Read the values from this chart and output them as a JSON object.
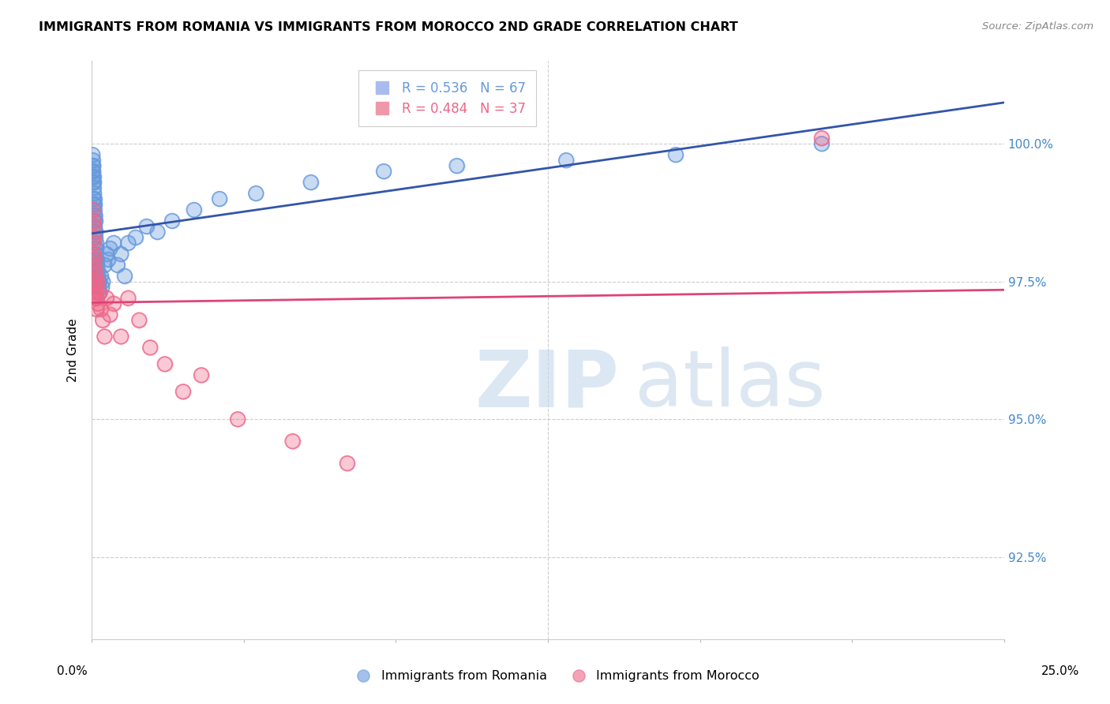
{
  "title": "IMMIGRANTS FROM ROMANIA VS IMMIGRANTS FROM MOROCCO 2ND GRADE CORRELATION CHART",
  "source": "Source: ZipAtlas.com",
  "ylabel": "2nd Grade",
  "ytick_labels": [
    "92.5%",
    "95.0%",
    "97.5%",
    "100.0%"
  ],
  "ytick_values": [
    92.5,
    95.0,
    97.5,
    100.0
  ],
  "xlim": [
    0.0,
    25.0
  ],
  "ylim": [
    91.0,
    101.5
  ],
  "romania_color": "#6699dd",
  "morocco_color": "#ee6688",
  "romania_line_color": "#3355aa",
  "morocco_line_color": "#dd4477",
  "romania_R": 0.536,
  "romania_N": 67,
  "morocco_R": 0.484,
  "morocco_N": 37,
  "legend_label_romania": "Immigrants from Romania",
  "legend_label_morocco": "Immigrants from Morocco",
  "romania_x": [
    0.02,
    0.02,
    0.03,
    0.03,
    0.03,
    0.04,
    0.04,
    0.04,
    0.05,
    0.05,
    0.05,
    0.06,
    0.06,
    0.06,
    0.07,
    0.07,
    0.07,
    0.08,
    0.08,
    0.08,
    0.09,
    0.09,
    0.1,
    0.1,
    0.1,
    0.11,
    0.11,
    0.12,
    0.12,
    0.13,
    0.13,
    0.14,
    0.14,
    0.15,
    0.15,
    0.16,
    0.16,
    0.17,
    0.18,
    0.19,
    0.2,
    0.22,
    0.25,
    0.28,
    0.3,
    0.35,
    0.4,
    0.45,
    0.5,
    0.6,
    0.7,
    0.8,
    0.9,
    1.0,
    1.2,
    1.5,
    1.8,
    2.2,
    2.8,
    3.5,
    4.5,
    6.0,
    8.0,
    10.0,
    13.0,
    16.0,
    20.0
  ],
  "romania_y": [
    99.8,
    99.5,
    99.7,
    99.6,
    99.4,
    99.5,
    99.3,
    99.6,
    99.2,
    99.4,
    99.0,
    99.3,
    99.1,
    98.9,
    99.0,
    98.8,
    98.6,
    98.9,
    98.7,
    98.5,
    98.7,
    98.4,
    98.6,
    98.3,
    98.1,
    98.4,
    98.0,
    98.2,
    97.9,
    98.1,
    97.8,
    97.9,
    97.7,
    97.8,
    97.6,
    97.7,
    97.5,
    97.6,
    97.5,
    97.4,
    97.5,
    97.3,
    97.6,
    97.4,
    97.5,
    97.8,
    98.0,
    97.9,
    98.1,
    98.2,
    97.8,
    98.0,
    97.6,
    98.2,
    98.3,
    98.5,
    98.4,
    98.6,
    98.8,
    99.0,
    99.1,
    99.3,
    99.5,
    99.6,
    99.7,
    99.8,
    100.0
  ],
  "morocco_x": [
    0.02,
    0.03,
    0.04,
    0.04,
    0.05,
    0.05,
    0.06,
    0.07,
    0.07,
    0.08,
    0.08,
    0.09,
    0.1,
    0.1,
    0.11,
    0.12,
    0.13,
    0.15,
    0.17,
    0.2,
    0.25,
    0.3,
    0.35,
    0.4,
    0.5,
    0.6,
    0.8,
    1.0,
    1.3,
    1.6,
    2.0,
    2.5,
    3.0,
    4.0,
    5.5,
    7.0,
    20.0
  ],
  "morocco_y": [
    98.8,
    98.5,
    98.2,
    98.6,
    98.0,
    98.3,
    97.8,
    97.5,
    97.9,
    97.4,
    97.7,
    97.3,
    97.6,
    97.2,
    97.4,
    97.0,
    97.2,
    97.5,
    97.1,
    97.3,
    97.0,
    96.8,
    96.5,
    97.2,
    96.9,
    97.1,
    96.5,
    97.2,
    96.8,
    96.3,
    96.0,
    95.5,
    95.8,
    95.0,
    94.6,
    94.2,
    100.1
  ]
}
